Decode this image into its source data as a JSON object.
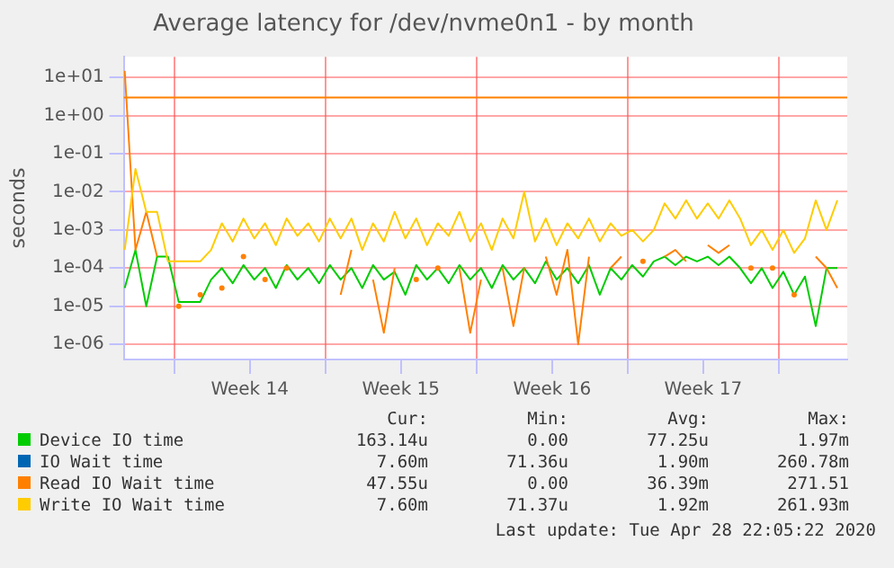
{
  "chart_data": {
    "type": "line",
    "title": "Average latency for /dev/nvme0n1 - by month",
    "ylabel": "seconds",
    "x": [
      "2020-03-27T17:00",
      "2020-03-28T05:00",
      "2020-03-28T17:00",
      "2020-03-29T05:00",
      "2020-03-29T17:00",
      "2020-03-30T05:00",
      "2020-03-30T17:00",
      "2020-03-31T05:00",
      "2020-03-31T17:00",
      "2020-04-01T05:00",
      "2020-04-01T17:00",
      "2020-04-02T05:00",
      "2020-04-02T17:00",
      "2020-04-03T05:00",
      "2020-04-03T17:00",
      "2020-04-04T05:00",
      "2020-04-04T17:00",
      "2020-04-05T05:00",
      "2020-04-05T17:00",
      "2020-04-06T05:00",
      "2020-04-06T17:00",
      "2020-04-07T05:00",
      "2020-04-07T17:00",
      "2020-04-08T05:00",
      "2020-04-08T17:00",
      "2020-04-09T05:00",
      "2020-04-09T17:00",
      "2020-04-10T05:00",
      "2020-04-10T17:00",
      "2020-04-11T05:00",
      "2020-04-11T17:00",
      "2020-04-12T05:00",
      "2020-04-12T17:00",
      "2020-04-13T05:00",
      "2020-04-13T17:00",
      "2020-04-14T05:00",
      "2020-04-14T17:00",
      "2020-04-15T05:00",
      "2020-04-15T17:00",
      "2020-04-16T05:00",
      "2020-04-16T17:00",
      "2020-04-17T05:00",
      "2020-04-17T17:00",
      "2020-04-18T05:00",
      "2020-04-18T17:00",
      "2020-04-19T05:00",
      "2020-04-19T17:00",
      "2020-04-20T05:00",
      "2020-04-20T17:00",
      "2020-04-21T05:00",
      "2020-04-21T17:00",
      "2020-04-22T05:00",
      "2020-04-22T17:00",
      "2020-04-23T05:00",
      "2020-04-23T17:00",
      "2020-04-24T05:00",
      "2020-04-24T17:00",
      "2020-04-25T05:00",
      "2020-04-25T17:00",
      "2020-04-26T05:00",
      "2020-04-26T17:00",
      "2020-04-27T05:00",
      "2020-04-27T17:00",
      "2020-04-28T05:00",
      "2020-04-28T17:00",
      "2020-04-29T05:00",
      "2020-04-29T17:00"
    ],
    "series": [
      {
        "name": "Device IO time",
        "color": "#00cc00",
        "values": [
          3e-05,
          0.0003,
          1e-05,
          0.0002,
          0.0002,
          1.3e-05,
          1.3e-05,
          1.3e-05,
          5e-05,
          0.0001,
          4e-05,
          0.00012,
          5e-05,
          0.0001,
          3e-05,
          0.00012,
          5e-05,
          0.0001,
          4e-05,
          0.00012,
          5e-05,
          0.0001,
          3e-05,
          0.00012,
          5e-05,
          8e-05,
          2e-05,
          0.00012,
          5e-05,
          0.0001,
          4e-05,
          0.00012,
          5e-05,
          0.0001,
          3e-05,
          0.00012,
          5e-05,
          0.0001,
          4e-05,
          0.00015,
          5e-05,
          0.0001,
          4e-05,
          0.00012,
          2e-05,
          0.0001,
          5e-05,
          0.00012,
          6e-05,
          0.00015,
          0.0002,
          0.00012,
          0.0002,
          0.00015,
          0.0002,
          0.00012,
          0.0002,
          0.0001,
          4e-05,
          0.0001,
          3e-05,
          8e-05,
          2e-05,
          6e-05,
          3e-06,
          0.0001,
          0.0001
        ]
      },
      {
        "name": "IO Wait time",
        "color": "#0066b3",
        "values": [
          null,
          null,
          null,
          null,
          null,
          null,
          null,
          null,
          null,
          null,
          null,
          null,
          null,
          null,
          null,
          null,
          null,
          null,
          null,
          null,
          null,
          null,
          null,
          null,
          null,
          null,
          null,
          null,
          null,
          null,
          null,
          null,
          null,
          null,
          null,
          null,
          null,
          null,
          null,
          null,
          null,
          null,
          null,
          null,
          null,
          null,
          null,
          null,
          null,
          null,
          null,
          null,
          null,
          null,
          null,
          null,
          null,
          null,
          null,
          null,
          null,
          null,
          null,
          null,
          null,
          null,
          null
        ]
      },
      {
        "name": "Read IO Wait time",
        "color": "#ff8000",
        "values": [
          15,
          0.0003,
          0.003,
          0.0002,
          null,
          1e-05,
          null,
          2e-05,
          null,
          3e-05,
          null,
          0.0002,
          null,
          5e-05,
          null,
          0.0001,
          null,
          null,
          null,
          null,
          2e-05,
          0.0003,
          null,
          5e-05,
          2e-06,
          0.0001,
          null,
          5e-05,
          null,
          0.0001,
          null,
          0.0001,
          2e-06,
          5e-05,
          null,
          0.0001,
          3e-06,
          0.0001,
          null,
          0.0002,
          2e-05,
          0.0003,
          1e-06,
          0.0002,
          null,
          0.0001,
          0.0002,
          null,
          0.00015,
          null,
          0.0002,
          0.0003,
          0.00015,
          null,
          0.0004,
          0.00025,
          0.0004,
          null,
          0.0001,
          null,
          0.0001,
          null,
          2e-05,
          null,
          0.0002,
          0.0001,
          3e-05
        ]
      },
      {
        "name": "Write IO Wait time",
        "color": "#ffcc00",
        "values": [
          0.0003,
          0.04,
          0.003,
          0.003,
          0.00015,
          0.00015,
          0.00015,
          0.00015,
          0.0003,
          0.0015,
          0.0005,
          0.002,
          0.0006,
          0.0015,
          0.0004,
          0.002,
          0.0007,
          0.0015,
          0.0005,
          0.002,
          0.0006,
          0.002,
          0.0003,
          0.0015,
          0.0005,
          0.003,
          0.0006,
          0.002,
          0.0004,
          0.0015,
          0.0007,
          0.003,
          0.0005,
          0.0015,
          0.0003,
          0.002,
          0.0006,
          0.01,
          0.0005,
          0.002,
          0.0004,
          0.0015,
          0.0006,
          0.002,
          0.0005,
          0.0015,
          0.0007,
          0.001,
          0.0005,
          0.001,
          0.005,
          0.002,
          0.006,
          0.002,
          0.005,
          0.002,
          0.006,
          0.002,
          0.0004,
          0.001,
          0.0003,
          0.001,
          0.00025,
          0.0006,
          0.006,
          0.001,
          0.006
        ]
      }
    ],
    "xlim": [
      "2020-03-27T16:00",
      "2020-04-30T04:00"
    ],
    "xticks": [
      {
        "value": "2020-03-30",
        "label": null
      },
      {
        "value": "2020-04-02T12:00",
        "label": "Week 14"
      },
      {
        "value": "2020-04-06",
        "label": null
      },
      {
        "value": "2020-04-09T12:00",
        "label": "Week 15"
      },
      {
        "value": "2020-04-13",
        "label": null
      },
      {
        "value": "2020-04-16T12:00",
        "label": "Week 16"
      },
      {
        "value": "2020-04-20",
        "label": null
      },
      {
        "value": "2020-04-23T12:00",
        "label": "Week 17"
      },
      {
        "value": "2020-04-27",
        "label": null
      }
    ],
    "ylim": [
      4e-07,
      35
    ],
    "log": true,
    "yticks": [
      {
        "value": 1e-06,
        "label": "1e-06"
      },
      {
        "value": 1e-05,
        "label": "1e-05"
      },
      {
        "value": 0.0001,
        "label": "1e-04"
      },
      {
        "value": 0.001,
        "label": "1e-03"
      },
      {
        "value": 0.01,
        "label": "1e-02"
      },
      {
        "value": 0.1,
        "label": "1e-01"
      },
      {
        "value": 1,
        "label": "1e+00"
      },
      {
        "value": 10,
        "label": "1e+01"
      }
    ],
    "ref_lines": [
      {
        "axis": "y",
        "value": 3,
        "color": "#ff8000"
      }
    ],
    "grid": true,
    "legend": "bottom",
    "marker": "none",
    "line_style": "solid",
    "annotations": [
      "Cur:",
      "Min:",
      "Avg:",
      "Max:",
      "163.14u",
      "0.00",
      "77.25u",
      "1.97m",
      "7.60m",
      "71.36u",
      "1.90m",
      "260.78m",
      "47.55u",
      "0.00",
      "36.39m",
      "271.51",
      "7.60m",
      "71.37u",
      "1.92m",
      "261.93m",
      "Last update: Tue Apr 28 22:05:22 2020"
    ]
  }
}
